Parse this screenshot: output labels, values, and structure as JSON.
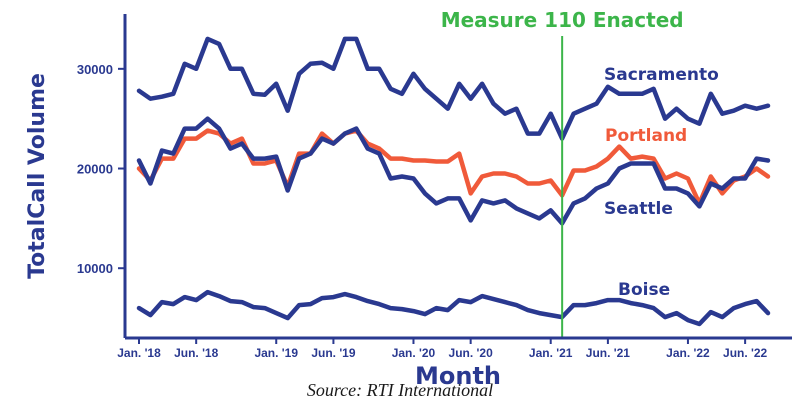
{
  "chart_data": {
    "type": "line",
    "ylabel": "TotalCall Volume",
    "xlabel": "Month",
    "source": "Source: RTI International",
    "x_ticks": [
      "Jan. '18",
      "Jun. '18",
      "Jan. '19",
      "Jun. '19",
      "Jan. '20",
      "Jun. '20",
      "Jan. '21",
      "Jun. '21",
      "Jan. '22",
      "Jun. '22"
    ],
    "x_tick_index": [
      0,
      5,
      12,
      17,
      24,
      29,
      36,
      41,
      48,
      53
    ],
    "y_ticks": [
      10000,
      20000,
      30000
    ],
    "ylim": [
      3000,
      35500
    ],
    "grid": false,
    "annotation": {
      "label": "Measure 110 Enacted",
      "x_index": 37,
      "color": "#3cb54a"
    },
    "series": [
      {
        "name": "Sacramento",
        "color": "#2a3990",
        "values": [
          27800,
          27000,
          27200,
          27500,
          30500,
          30000,
          33000,
          32500,
          30000,
          30000,
          27500,
          27400,
          28500,
          25800,
          29500,
          30500,
          30600,
          30000,
          33000,
          33000,
          30000,
          30000,
          28000,
          27500,
          29500,
          28000,
          27000,
          26000,
          28500,
          27000,
          28500,
          26500,
          25500,
          26000,
          23500,
          23500,
          25500,
          23000,
          25500,
          26000,
          26500,
          28200,
          27500,
          27500,
          27500,
          28000,
          25000,
          26000,
          25000,
          24500,
          27500,
          25500,
          25800,
          26300,
          26000,
          26300
        ]
      },
      {
        "name": "Portland",
        "color": "#f05a3a",
        "values": [
          20000,
          18800,
          21000,
          21000,
          23000,
          23000,
          23800,
          23500,
          22500,
          23000,
          20500,
          20500,
          20800,
          18200,
          21500,
          21500,
          23500,
          22500,
          23500,
          23800,
          22500,
          22000,
          21000,
          21000,
          20800,
          20800,
          20700,
          20700,
          21500,
          17500,
          19200,
          19500,
          19500,
          19200,
          18500,
          18500,
          18800,
          17300,
          19800,
          19800,
          20200,
          21000,
          22200,
          21000,
          21200,
          21000,
          19000,
          19500,
          19000,
          16500,
          19200,
          17500,
          18800,
          19200,
          20000,
          19200
        ]
      },
      {
        "name": "Seattle",
        "color": "#2a3990",
        "values": [
          20800,
          18500,
          21800,
          21500,
          24000,
          24000,
          25000,
          24000,
          22000,
          22500,
          21000,
          21000,
          21200,
          17800,
          21000,
          21500,
          23000,
          22500,
          23500,
          24000,
          22000,
          21500,
          19000,
          19200,
          19000,
          17500,
          16500,
          17000,
          17000,
          14800,
          16800,
          16500,
          16800,
          16000,
          15500,
          15000,
          15800,
          14500,
          16500,
          17000,
          18000,
          18500,
          20000,
          20500,
          20500,
          20500,
          18000,
          18000,
          17500,
          16200,
          18500,
          18000,
          19000,
          19000,
          21000,
          20800
        ]
      },
      {
        "name": "Boise",
        "color": "#2a3990",
        "values": [
          6000,
          5300,
          6600,
          6400,
          7100,
          6800,
          7600,
          7200,
          6700,
          6600,
          6100,
          6000,
          5500,
          5000,
          6300,
          6400,
          7000,
          7100,
          7400,
          7100,
          6700,
          6400,
          6000,
          5900,
          5700,
          5400,
          6000,
          5800,
          6800,
          6600,
          7200,
          6900,
          6600,
          6300,
          5800,
          5500,
          5300,
          5100,
          6300,
          6300,
          6500,
          6800,
          6800,
          6500,
          6300,
          6000,
          5100,
          5500,
          4800,
          4400,
          5600,
          5100,
          6000,
          6400,
          6700,
          5500
        ]
      }
    ]
  }
}
